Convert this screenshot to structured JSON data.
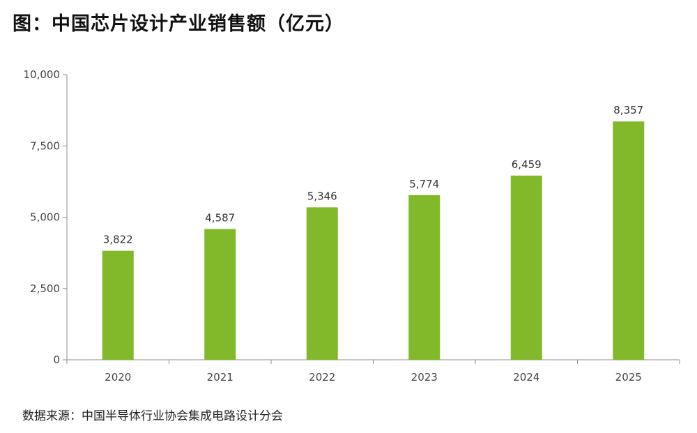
{
  "title": "图：中国芯片设计产业销售额（亿元）",
  "source": "数据来源：中国半导体行业协会集成电路设计分会",
  "colors": {
    "bar": "#82b92b",
    "axis": "#8c8c8c",
    "text": "#333333"
  },
  "chart_data": {
    "type": "bar",
    "title": "图：中国芯片设计产业销售额（亿元）",
    "categories": [
      "2020",
      "2021",
      "2022",
      "2023",
      "2024",
      "2025"
    ],
    "values": [
      3822,
      4587,
      5346,
      5774,
      6459,
      8357
    ],
    "value_labels": [
      "3,822",
      "4,587",
      "5,346",
      "5,774",
      "6,459",
      "8,357"
    ],
    "xlabel": "",
    "ylabel": "",
    "ylim": [
      0,
      10000
    ],
    "yticks": [
      0,
      2500,
      5000,
      7500,
      10000
    ],
    "ytick_labels": [
      "0",
      "2,500",
      "5,000",
      "7,500",
      "10,000"
    ],
    "grid": false,
    "legend": "none"
  }
}
